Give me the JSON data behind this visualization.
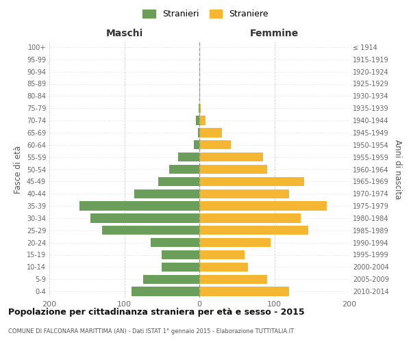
{
  "age_groups": [
    "0-4",
    "5-9",
    "10-14",
    "15-19",
    "20-24",
    "25-29",
    "30-34",
    "35-39",
    "40-44",
    "45-49",
    "50-54",
    "55-59",
    "60-64",
    "65-69",
    "70-74",
    "75-79",
    "80-84",
    "85-89",
    "90-94",
    "95-99",
    "100+"
  ],
  "birth_years": [
    "2010-2014",
    "2005-2009",
    "2000-2004",
    "1995-1999",
    "1990-1994",
    "1985-1989",
    "1980-1984",
    "1975-1979",
    "1970-1974",
    "1965-1969",
    "1960-1964",
    "1955-1959",
    "1950-1954",
    "1945-1949",
    "1940-1944",
    "1935-1939",
    "1930-1934",
    "1925-1929",
    "1920-1924",
    "1915-1919",
    "≤ 1914"
  ],
  "maschi": [
    90,
    75,
    50,
    50,
    65,
    130,
    145,
    160,
    87,
    55,
    40,
    28,
    7,
    2,
    5,
    1,
    0,
    0,
    0,
    0,
    0
  ],
  "femmine": [
    120,
    90,
    65,
    60,
    95,
    145,
    135,
    170,
    120,
    140,
    90,
    85,
    42,
    30,
    8,
    2,
    1,
    1,
    1,
    0,
    0
  ],
  "color_maschi": "#6a9e5a",
  "color_femmine": "#f5b731",
  "title": "Popolazione per cittadinanza straniera per età e sesso - 2015",
  "subtitle": "COMUNE DI FALCONARA MARITTIMA (AN) - Dati ISTAT 1° gennaio 2015 - Elaborazione TUTTITALIA.IT",
  "label_maschi": "Stranieri",
  "label_femmine": "Straniere",
  "header_left": "Maschi",
  "header_right": "Femmine",
  "ylabel_left": "Fasce di età",
  "ylabel_right": "Anni di nascita",
  "xlim": 200,
  "background_color": "#ffffff",
  "grid_color": "#cccccc"
}
